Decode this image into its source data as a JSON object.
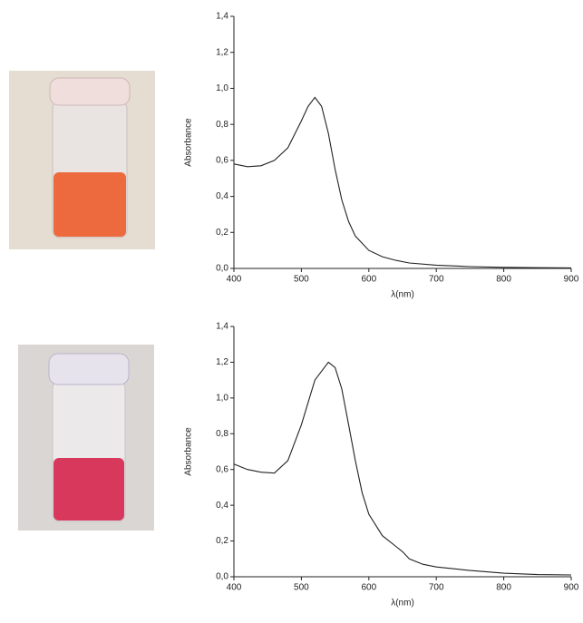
{
  "chart_data": [
    {
      "type": "line",
      "x_label": "λ(nm)",
      "y_label": "Absorbance",
      "color": "#222222",
      "x": [
        400,
        420,
        440,
        460,
        480,
        500,
        510,
        520,
        530,
        540,
        550,
        560,
        570,
        580,
        600,
        620,
        640,
        660,
        700,
        750,
        800,
        850,
        900
      ],
      "values": [
        0.58,
        0.565,
        0.57,
        0.6,
        0.67,
        0.82,
        0.9,
        0.95,
        0.9,
        0.75,
        0.55,
        0.38,
        0.26,
        0.18,
        0.1,
        0.065,
        0.045,
        0.03,
        0.018,
        0.01,
        0.006,
        0.004,
        0.003
      ],
      "xlim": [
        400,
        900
      ],
      "xticks": [
        400,
        500,
        600,
        700,
        800,
        900
      ],
      "ylim": [
        0,
        1.4
      ],
      "yticks": [
        {
          "value": 0,
          "label": "0,0"
        },
        {
          "value": 0.2,
          "label": "0,2"
        },
        {
          "value": 0.4,
          "label": "0,4"
        },
        {
          "value": 0.6,
          "label": "0,6"
        },
        {
          "value": 0.8,
          "label": "0,8"
        },
        {
          "value": 1.0,
          "label": "1,0"
        },
        {
          "value": 1.2,
          "label": "1,2"
        },
        {
          "value": 1.4,
          "label": "1,4"
        }
      ]
    },
    {
      "type": "line",
      "x_label": "λ(nm)",
      "y_label": "Absorbance",
      "color": "#222222",
      "x": [
        400,
        420,
        440,
        460,
        480,
        500,
        520,
        540,
        550,
        560,
        570,
        580,
        590,
        600,
        620,
        640,
        650,
        660,
        680,
        700,
        750,
        800,
        850,
        900
      ],
      "values": [
        0.63,
        0.6,
        0.585,
        0.58,
        0.65,
        0.85,
        1.1,
        1.2,
        1.17,
        1.05,
        0.85,
        0.65,
        0.47,
        0.35,
        0.23,
        0.17,
        0.14,
        0.1,
        0.07,
        0.055,
        0.035,
        0.02,
        0.012,
        0.01
      ],
      "xlim": [
        400,
        900
      ],
      "xticks": [
        400,
        500,
        600,
        700,
        800,
        900
      ],
      "ylim": [
        0,
        1.4
      ],
      "yticks": [
        {
          "value": 0,
          "label": "0,0"
        },
        {
          "value": 0.2,
          "label": "0,2"
        },
        {
          "value": 0.4,
          "label": "0,4"
        },
        {
          "value": 0.6,
          "label": "0,6"
        },
        {
          "value": 0.8,
          "label": "0,8"
        },
        {
          "value": 1.0,
          "label": "1,0"
        },
        {
          "value": 1.2,
          "label": "1,2"
        },
        {
          "value": 1.4,
          "label": "1,4"
        }
      ]
    }
  ]
}
